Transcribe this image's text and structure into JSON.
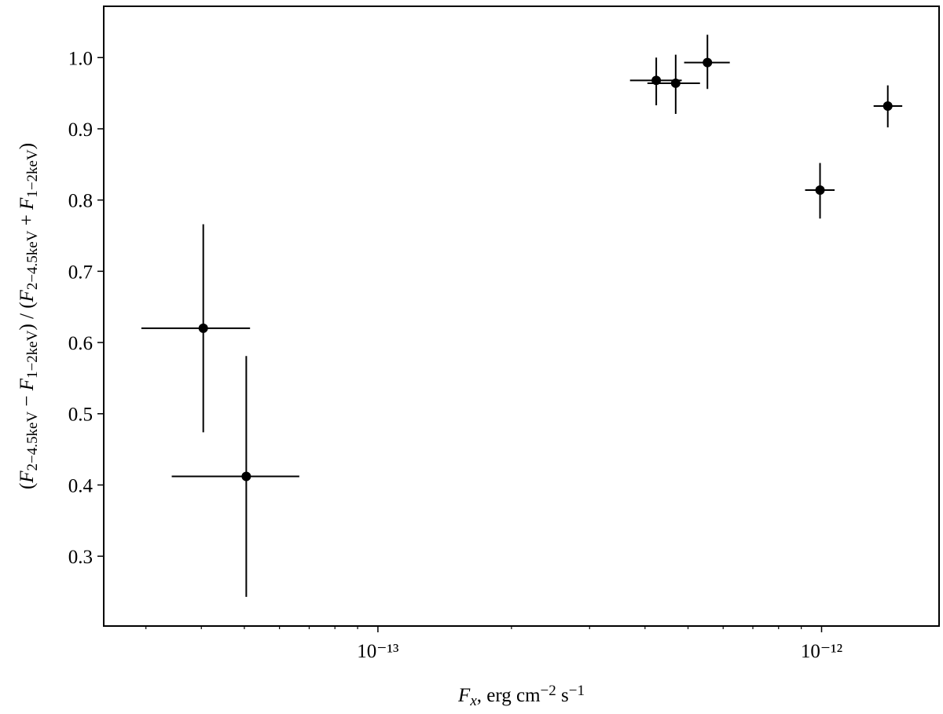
{
  "chart_data": {
    "type": "scatter",
    "x": [
      4.04e-14,
      5.05e-14,
      4.24e-13,
      4.69e-13,
      5.53e-13,
      9.92e-13,
      1.41e-12
    ],
    "values": [
      0.62,
      0.412,
      0.968,
      0.964,
      0.993,
      0.814,
      0.932
    ],
    "x_low": [
      2.93e-14,
      3.43e-14,
      3.7e-13,
      4.05e-13,
      4.9e-13,
      9.18e-13,
      1.31e-12
    ],
    "x_high": [
      5.15e-14,
      6.65e-14,
      4.84e-13,
      5.32e-13,
      6.21e-13,
      1.07e-12,
      1.52e-12
    ],
    "y_low": [
      0.474,
      0.243,
      0.933,
      0.921,
      0.956,
      0.774,
      0.902
    ],
    "y_high": [
      0.766,
      0.581,
      1.0,
      1.004,
      1.032,
      0.852,
      0.961
    ],
    "color": "#000000",
    "xscale": "log",
    "xlim": [
      2.41e-14,
      1.84e-12
    ],
    "ylim": [
      0.202,
      1.072
    ],
    "xticks": [
      {
        "value": 1e-13,
        "label": "10⁻¹³"
      },
      {
        "value": 1e-12,
        "label": "10⁻¹²"
      }
    ],
    "xminorticks": [
      3e-14,
      4e-14,
      5e-14,
      6e-14,
      7e-14,
      8e-14,
      9e-14,
      2e-13,
      3e-13,
      4e-13,
      5e-13,
      6e-13,
      7e-13,
      8e-13,
      9e-13
    ],
    "yticks": [
      0.3,
      0.4,
      0.5,
      0.6,
      0.7,
      0.8,
      0.9,
      {
        "value": 1,
        "label": "1.0"
      }
    ],
    "x_label": [
      {
        "text": "F",
        "italic": true
      },
      {
        "text": "x",
        "italic": true,
        "sub": true
      },
      {
        "text": ", erg cm"
      },
      {
        "text": "−2",
        "sup": true
      },
      {
        "text": " s"
      },
      {
        "text": "−1",
        "sup": true
      }
    ],
    "y_label": [
      {
        "text": "("
      },
      {
        "text": "F",
        "italic": true
      },
      {
        "text": "2−4.5keV",
        "sub": true
      },
      {
        "text": " − "
      },
      {
        "text": "F",
        "italic": true
      },
      {
        "text": "1−2keV",
        "sub": true
      },
      {
        "text": ") / ("
      },
      {
        "text": "F",
        "italic": true
      },
      {
        "text": "2−4.5keV",
        "sub": true
      },
      {
        "text": " + "
      },
      {
        "text": "F",
        "italic": true
      },
      {
        "text": "1−2keV",
        "sub": true
      },
      {
        "text": ")"
      }
    ]
  }
}
